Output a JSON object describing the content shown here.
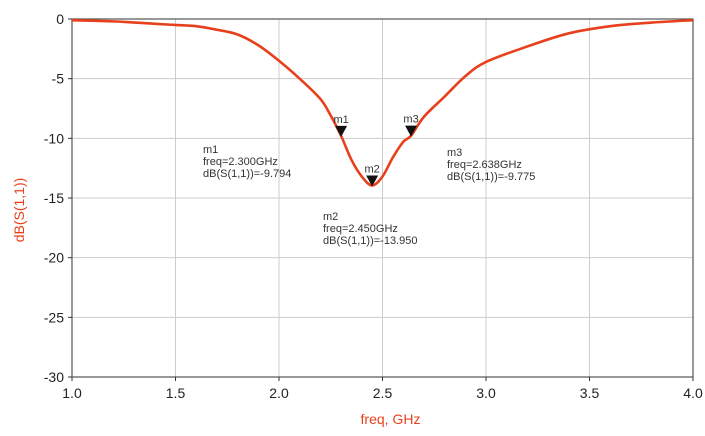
{
  "chart_data": {
    "type": "line",
    "title": "",
    "xlabel": "freq, GHz",
    "ylabel": "dB(S(1,1))",
    "xlim": [
      1.0,
      4.0
    ],
    "ylim": [
      -30,
      0
    ],
    "x_ticks": [
      1.0,
      1.5,
      2.0,
      2.5,
      3.0,
      3.5,
      4.0
    ],
    "x_tick_labels": [
      "1.0",
      "1.5",
      "2.0",
      "2.5",
      "3.0",
      "3.5",
      "4.0"
    ],
    "y_ticks": [
      0,
      -5,
      -10,
      -15,
      -20,
      -25,
      -30
    ],
    "y_tick_labels": [
      "0",
      "-5",
      "-10",
      "-15",
      "-20",
      "-25",
      "-30"
    ],
    "grid": true,
    "legend": "none",
    "series": [
      {
        "color": "#e8401c",
        "x": [
          1.0,
          1.2,
          1.4,
          1.5,
          1.6,
          1.7,
          1.8,
          1.9,
          2.0,
          2.1,
          2.2,
          2.25,
          2.3,
          2.35,
          2.4,
          2.45,
          2.5,
          2.55,
          2.6,
          2.638,
          2.7,
          2.8,
          2.9,
          3.0,
          3.2,
          3.4,
          3.6,
          3.8,
          4.0
        ],
        "y": [
          -0.1,
          -0.2,
          -0.4,
          -0.5,
          -0.6,
          -0.9,
          -1.3,
          -2.2,
          -3.5,
          -5.0,
          -6.7,
          -8.1,
          -9.794,
          -11.8,
          -13.2,
          -13.95,
          -13.2,
          -11.6,
          -10.3,
          -9.775,
          -8.2,
          -6.5,
          -4.8,
          -3.6,
          -2.3,
          -1.2,
          -0.6,
          -0.3,
          -0.1
        ]
      }
    ],
    "markers": [
      {
        "name": "m1",
        "x": 2.3,
        "y": -9.794,
        "lines": [
          "m1",
          "freq=2.300GHz",
          "dB(S(1,1))=-9.794"
        ]
      },
      {
        "name": "m2",
        "x": 2.45,
        "y": -13.95,
        "lines": [
          "m2",
          "freq=2.450GHz",
          "dB(S(1,1))=-13.950"
        ]
      },
      {
        "name": "m3",
        "x": 2.638,
        "y": -9.775,
        "lines": [
          "m3",
          "freq=2.638GHz",
          "dB(S(1,1))=-9.775"
        ]
      }
    ]
  }
}
